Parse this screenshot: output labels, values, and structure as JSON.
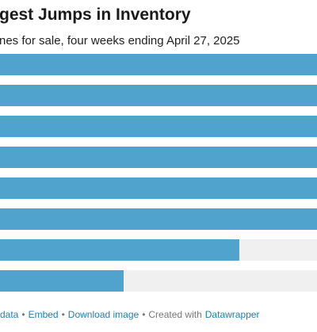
{
  "chart_data": {
    "type": "bar",
    "orientation": "horizontal",
    "title": "gest Jumps in Inventory",
    "subtitle": "nes for sale, four weeks ending April 27, 2025",
    "categories": [
      null,
      null,
      null,
      null,
      null,
      null,
      null,
      null
    ],
    "values": [
      100,
      100,
      100,
      100,
      100,
      100,
      75.5,
      39
    ],
    "color": "#4fa3cd",
    "xlim": [
      0,
      100
    ]
  },
  "footer": {
    "links": [
      "data",
      "Embed",
      "Download image"
    ],
    "separator": "•",
    "credit": "Created with",
    "credit_link": "Datawrapper"
  }
}
